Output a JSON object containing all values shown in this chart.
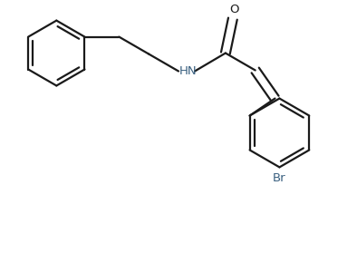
{
  "background_color": "#ffffff",
  "line_color": "#1a1a1a",
  "line_width": 1.6,
  "text_color_hn": "#3a6080",
  "text_color_o": "#1a1a1a",
  "text_color_br": "#3a6080",
  "font_size_label": 9.5,
  "figsize": [
    3.94,
    2.9
  ],
  "dpi": 100,
  "xlim": [
    0,
    3.94
  ],
  "ylim": [
    0,
    2.9
  ]
}
